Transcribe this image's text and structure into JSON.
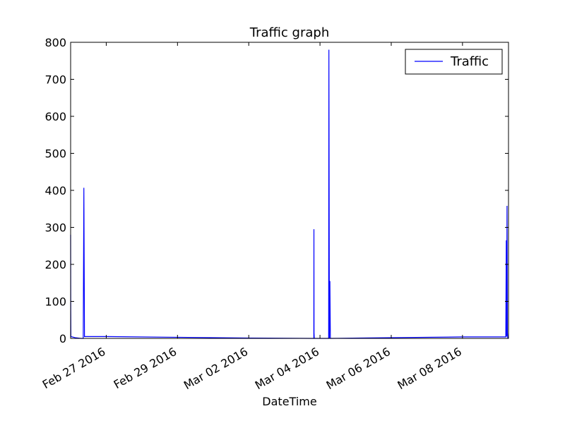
{
  "chart_data": {
    "type": "line",
    "title": "Traffic graph",
    "xlabel": "DateTime",
    "ylabel": "",
    "x_range": [
      "2016-02-26T00:00",
      "2016-03-09T07:00"
    ],
    "ylim": [
      0,
      800
    ],
    "yticks": [
      0,
      100,
      200,
      300,
      400,
      500,
      600,
      700,
      800
    ],
    "xticks": [
      {
        "date": "2016-02-27",
        "label": "Feb 27 2016"
      },
      {
        "date": "2016-02-29",
        "label": "Feb 29 2016"
      },
      {
        "date": "2016-03-02",
        "label": "Mar 02 2016"
      },
      {
        "date": "2016-03-04",
        "label": "Mar 04 2016"
      },
      {
        "date": "2016-03-06",
        "label": "Mar 06 2016"
      },
      {
        "date": "2016-03-08",
        "label": "Mar 08 2016"
      }
    ],
    "legend": "top-right",
    "grid": false,
    "series": [
      {
        "name": "Traffic",
        "color": "#0000ff",
        "points": [
          [
            "2016-02-26T00:00",
            280
          ],
          [
            "2016-02-26T00:05",
            75
          ],
          [
            "2016-02-26T00:10",
            5
          ],
          [
            "2016-02-26T03:00",
            2
          ],
          [
            "2016-02-26T07:00",
            0
          ],
          [
            "2016-02-26T08:30",
            0
          ],
          [
            "2016-02-26T08:55",
            407
          ],
          [
            "2016-02-26T09:20",
            5
          ],
          [
            "2016-02-27T00:00",
            5
          ],
          [
            "2016-02-29T00:00",
            3
          ],
          [
            "2016-03-02T00:00",
            1
          ],
          [
            "2016-03-03T19:50",
            0
          ],
          [
            "2016-03-03T19:55",
            295
          ],
          [
            "2016-03-03T20:00",
            15
          ],
          [
            "2016-03-03T20:10",
            0
          ],
          [
            "2016-03-04T05:50",
            0
          ],
          [
            "2016-03-04T06:00",
            780
          ],
          [
            "2016-03-04T06:20",
            0
          ],
          [
            "2016-03-04T06:40",
            155
          ],
          [
            "2016-03-04T07:00",
            0
          ],
          [
            "2016-03-06T00:00",
            2
          ],
          [
            "2016-03-08T00:00",
            4
          ],
          [
            "2016-03-09T05:10",
            4
          ],
          [
            "2016-03-09T05:30",
            265
          ],
          [
            "2016-03-09T05:45",
            5
          ],
          [
            "2016-03-09T06:00",
            358
          ],
          [
            "2016-03-09T06:15",
            15
          ],
          [
            "2016-03-09T06:30",
            0
          ]
        ]
      }
    ]
  }
}
